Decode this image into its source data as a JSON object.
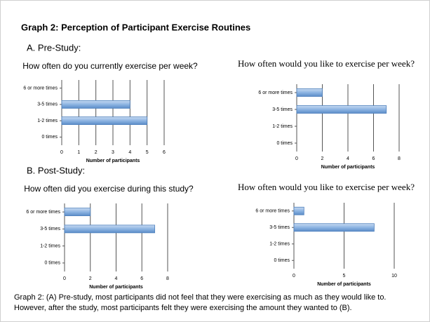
{
  "title": "Graph 2: Perception of Participant Exercise Routines",
  "section_a": "A. Pre-Study:",
  "section_b": "B. Post-Study:",
  "caption": [
    "Graph 2: (A) Pre-study, most participants did not feel that they were exercising as much as they would like to.",
    "However, after the study, most participants felt they were exercising the amount they wanted to (B)."
  ],
  "chart_data": [
    {
      "type": "bar",
      "orientation": "horizontal",
      "title": "How often do you currently exercise per week?",
      "xlabel": "Number of participants",
      "categories": [
        "6 or more times",
        "3-5 times",
        "1-2 times",
        "0 times"
      ],
      "values": [
        0,
        4,
        5,
        0
      ],
      "color": "#8db4e2",
      "xlim": [
        0,
        6
      ],
      "xticks": [
        0,
        1,
        2,
        3,
        4,
        5,
        6
      ],
      "grid": true
    },
    {
      "type": "bar",
      "orientation": "horizontal",
      "title": "How often would you like to exercise per week?",
      "xlabel": "Number of participants",
      "categories": [
        "6 or more times",
        "3-5 times",
        "1-2 times",
        "0 times"
      ],
      "values": [
        2,
        7,
        0,
        0
      ],
      "color": "#8db4e2",
      "xlim": [
        0,
        8
      ],
      "xticks": [
        0,
        2,
        4,
        6,
        8
      ],
      "grid": true
    },
    {
      "type": "bar",
      "orientation": "horizontal",
      "title": "How often did you exercise during this study?",
      "xlabel": "Number of participants",
      "categories": [
        "6 or more times",
        "3-5 times",
        "1-2 times",
        "0 times"
      ],
      "values": [
        2,
        7,
        0,
        0
      ],
      "color": "#8db4e2",
      "xlim": [
        0,
        8
      ],
      "xticks": [
        0,
        2,
        4,
        6,
        8
      ],
      "grid": true
    },
    {
      "type": "bar",
      "orientation": "horizontal",
      "title": "How often would you like to exercise per week?",
      "xlabel": "Number of participants",
      "categories": [
        "6 or more times",
        "3-5 times",
        "1-2 times",
        "0 times"
      ],
      "values": [
        1,
        8,
        0,
        0
      ],
      "color": "#8db4e2",
      "xlim": [
        0,
        10
      ],
      "xticks": [
        0,
        5,
        10
      ],
      "grid": true
    }
  ]
}
